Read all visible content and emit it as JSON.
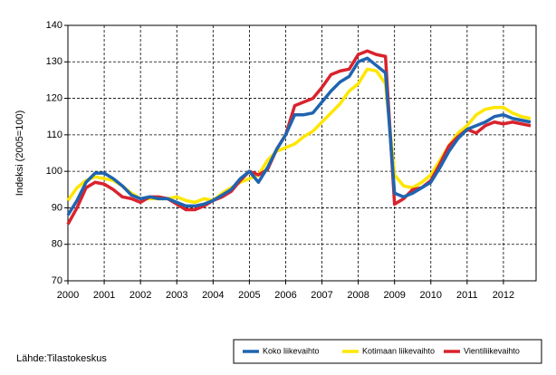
{
  "chart_data": {
    "type": "line",
    "y_label": "Indeksi (2005=100)",
    "source": "Lähde:Tilastokeskus",
    "x": [
      2000,
      2000.25,
      2000.5,
      2000.75,
      2001,
      2001.25,
      2001.5,
      2001.75,
      2002,
      2002.25,
      2002.5,
      2002.75,
      2003,
      2003.25,
      2003.5,
      2003.75,
      2004,
      2004.25,
      2004.5,
      2004.75,
      2005,
      2005.25,
      2005.5,
      2005.75,
      2006,
      2006.25,
      2006.5,
      2006.75,
      2007,
      2007.25,
      2007.5,
      2007.75,
      2008,
      2008.25,
      2008.5,
      2008.75,
      2009,
      2009.25,
      2009.5,
      2009.75,
      2010,
      2010.25,
      2010.5,
      2010.75,
      2011,
      2011.25,
      2011.5,
      2011.75,
      2012,
      2012.25,
      2012.5,
      2012.75
    ],
    "series": [
      {
        "name": "Koko liikevaihto",
        "color": "#1f64b0",
        "values": [
          88,
          92,
          97,
          99.5,
          99.5,
          98,
          96,
          93.5,
          92.5,
          93,
          92.5,
          92.5,
          91.5,
          90.5,
          90.5,
          91,
          92,
          93.5,
          95,
          98,
          100,
          97,
          101,
          106,
          110,
          115.5,
          115.5,
          116,
          119,
          122,
          124.5,
          126,
          130,
          131,
          129,
          127,
          94,
          93,
          94,
          95.5,
          97,
          101,
          105.5,
          109,
          111.5,
          112.5,
          113.5,
          115,
          115.5,
          114.5,
          114,
          113.5
        ]
      },
      {
        "name": "Kotimaan liikevaihto",
        "color": "#ffe600",
        "values": [
          92,
          95.5,
          97.5,
          98.5,
          98,
          97.5,
          96,
          94,
          92.5,
          92.5,
          92.5,
          92.5,
          93,
          92,
          91.5,
          92.5,
          92,
          94,
          95.5,
          97,
          98,
          99,
          103,
          105.5,
          106.5,
          107.5,
          109.5,
          111,
          113.5,
          116,
          118.5,
          122,
          124,
          128,
          127.5,
          124,
          99,
          96,
          95.5,
          97,
          99,
          103,
          107,
          110.5,
          112.5,
          115.5,
          117,
          117.5,
          117.5,
          116,
          115,
          114.5
        ]
      },
      {
        "name": "Vientiliikevaihto",
        "color": "#d9232d",
        "values": [
          85.5,
          90,
          95.5,
          97,
          96.5,
          95,
          93,
          92.5,
          91.5,
          93,
          93,
          92.5,
          91,
          89.5,
          89.5,
          90.5,
          92,
          93,
          94.5,
          97.5,
          100,
          99,
          100.5,
          106,
          110,
          118,
          119,
          120,
          123,
          126.5,
          127.5,
          128,
          132,
          133,
          132,
          131.5,
          91,
          92.5,
          95,
          95.5,
          97.5,
          102,
          107,
          109.5,
          111.5,
          110.5,
          112.5,
          113.5,
          113,
          113.5,
          113,
          112.5
        ]
      }
    ],
    "xlim": [
      2000,
      2012.9
    ],
    "xticks": [
      2000,
      2001,
      2002,
      2003,
      2004,
      2005,
      2006,
      2007,
      2008,
      2009,
      2010,
      2011,
      2012
    ],
    "ylim": [
      70,
      140
    ],
    "yticks": [
      70,
      80,
      90,
      100,
      110,
      120,
      130,
      140
    ],
    "grid": true,
    "legend": "bottom-right"
  }
}
